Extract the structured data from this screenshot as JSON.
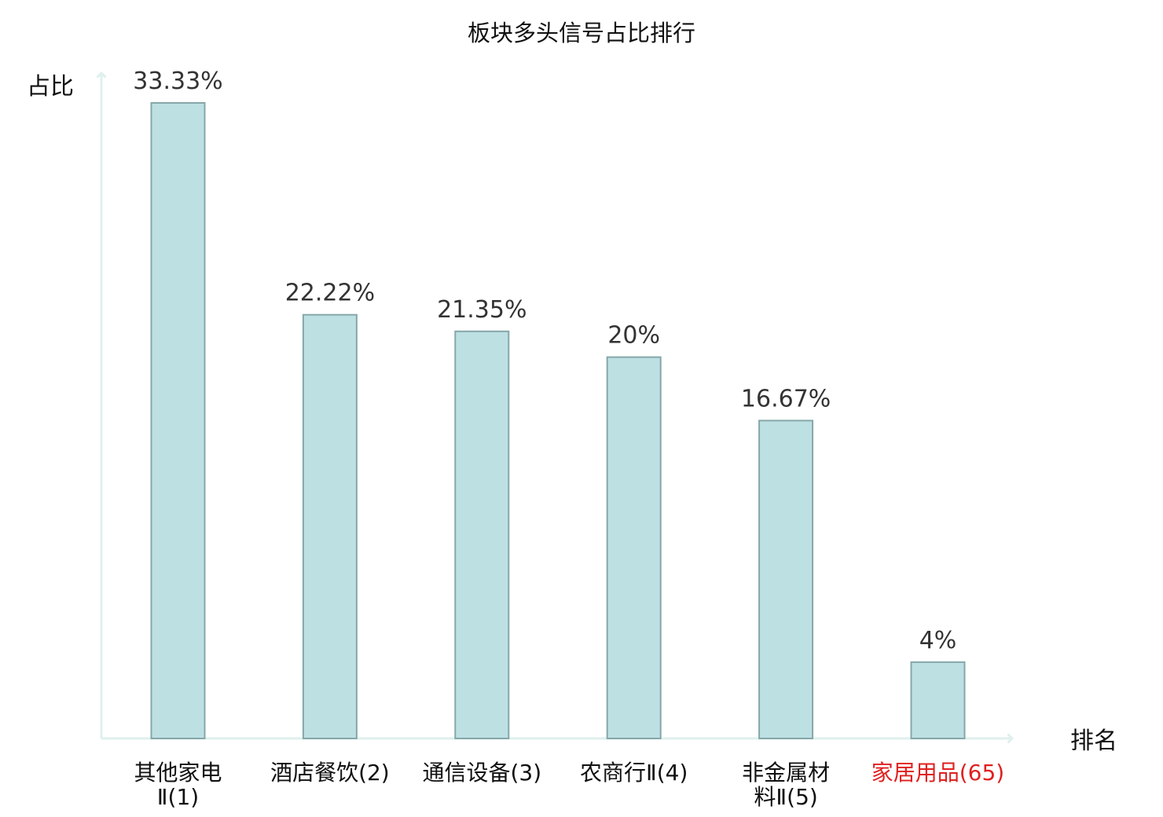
{
  "chart_data": {
    "type": "bar",
    "title": "板块多头信号占比排行",
    "xlabel": "排名",
    "ylabel": "占比",
    "ylim": [
      0,
      35
    ],
    "grid": false,
    "categories": [
      [
        "其他家电",
        "Ⅱ(1)"
      ],
      [
        "酒店餐饮(2)"
      ],
      [
        "通信设备(3)"
      ],
      [
        "农商行Ⅱ(4)"
      ],
      [
        "非金属材",
        "料Ⅱ(5)"
      ],
      [
        "家居用品(65)"
      ]
    ],
    "series": [
      {
        "values": [
          33.33,
          22.22,
          21.35,
          20,
          16.67,
          4
        ],
        "labels": [
          "33.33%",
          "22.22%",
          "21.35%",
          "20%",
          "16.67%",
          "4%"
        ]
      }
    ],
    "highlight_index": 5,
    "colors": {
      "bar_fill": "#bde0e3",
      "bar_stroke": "#86a7a9",
      "axis": "#dff0ee",
      "tick_normal": "#111111",
      "tick_highlight": "#e02020",
      "value_label": "#333333"
    }
  }
}
